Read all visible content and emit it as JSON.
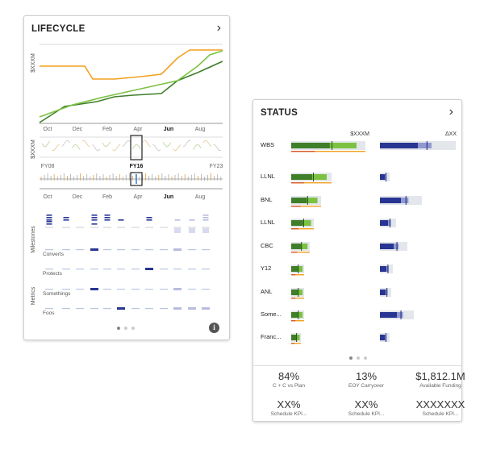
{
  "lifecycle": {
    "title": "LIFECYCLE",
    "ylabel_top": "$XXXM",
    "ylabel_mid": "$XXXM",
    "months": [
      "Oct",
      "Dec",
      "Feb",
      "Apr",
      "Jun",
      "Aug"
    ],
    "active_month": "Jun",
    "years": [
      "FY08",
      "FY16",
      "FY23"
    ],
    "active_year": "FY16",
    "section_milestones": "Milestones",
    "section_metrics": "Metrics",
    "row_labels": [
      "Converts",
      "Protects",
      "Somethings",
      "Foos"
    ],
    "colors": {
      "orange": "#f0a020",
      "dark_green": "#3f7f2a",
      "light_green": "#7cc242",
      "navy": "#283593",
      "lavender": "#b8bde0"
    },
    "info_glyph": "i"
  },
  "status": {
    "title": "STATUS",
    "col_headers": [
      "$XXXM",
      "ΔXX"
    ],
    "rows": [
      {
        "label": "WBS"
      },
      {
        "label": "LLNL"
      },
      {
        "label": "BNL"
      },
      {
        "label": "LLNL"
      },
      {
        "label": "CBC"
      },
      {
        "label": "Y12"
      },
      {
        "label": "ANL"
      },
      {
        "label": "Some..."
      },
      {
        "label": "Franc..."
      }
    ],
    "kpis": [
      {
        "value": "84%",
        "label": "C + C vs Plan"
      },
      {
        "value": "13%",
        "label": "EOY Carryover"
      },
      {
        "value": "$1,812.1M",
        "label": "Available Funding"
      },
      {
        "value": "XX%",
        "label": "Schedule KPI..."
      },
      {
        "value": "XX%",
        "label": "Schedule KPI..."
      },
      {
        "value": "XXXXXXX",
        "label": "Schedule KPI..."
      }
    ]
  },
  "chevron_glyph": "›"
}
